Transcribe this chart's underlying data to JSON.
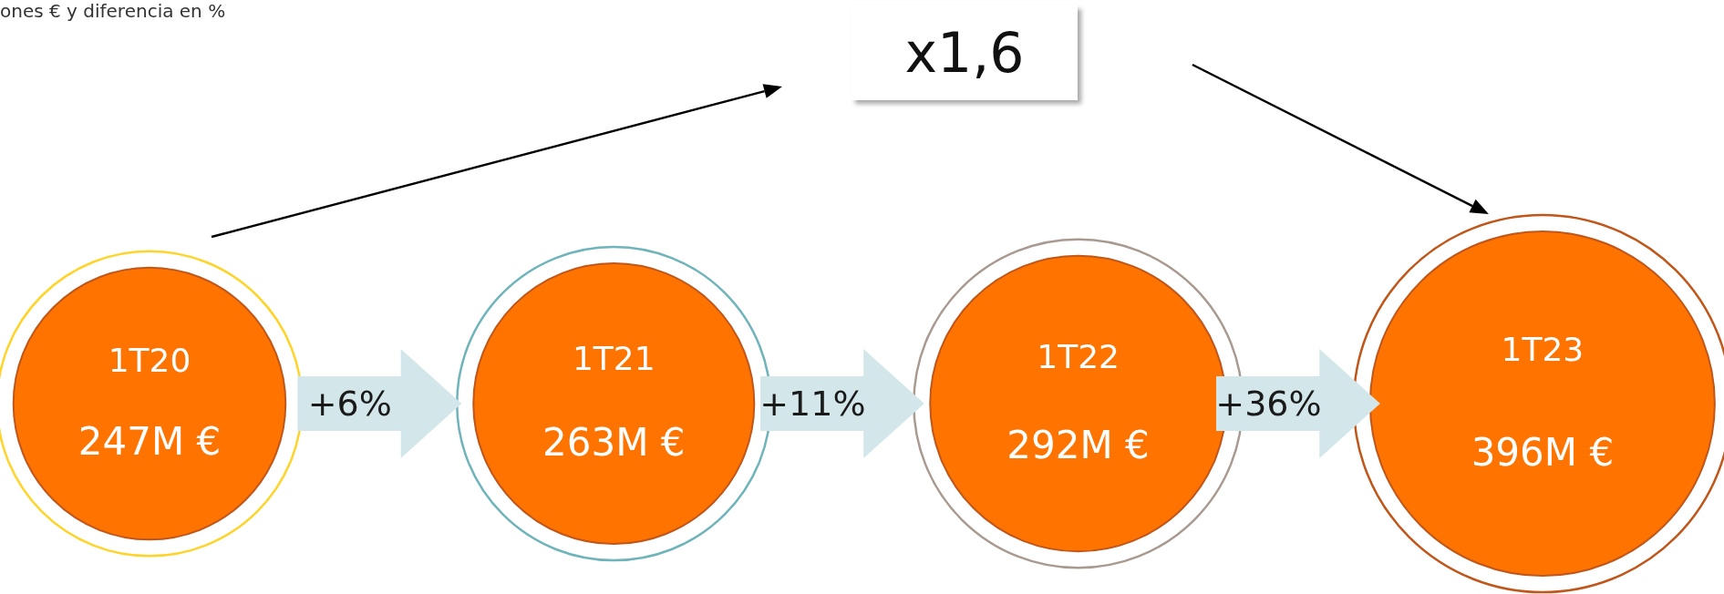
{
  "chart_data": {
    "type": "other",
    "subtitle": "ones € y diferencia en %",
    "categories": [
      "1T20",
      "1T21",
      "1T22",
      "1T23"
    ],
    "values": [
      247,
      263,
      292,
      396
    ],
    "value_labels": [
      "247M €",
      "263M €",
      "292M €",
      "396M €"
    ],
    "color": "#ff7300",
    "annotations": [
      "+6%",
      "+11%",
      "+36%",
      "x1,6"
    ]
  }
}
